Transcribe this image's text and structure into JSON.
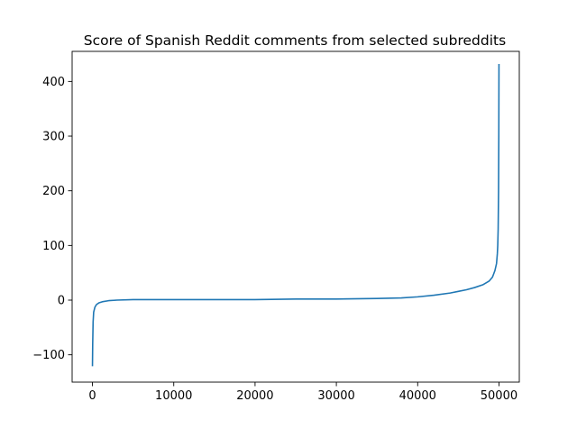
{
  "chart_data": {
    "type": "line",
    "title": "Score of Spanish Reddit comments from selected subreddits",
    "xlabel": "",
    "ylabel": "",
    "xlim": [
      -2500,
      52500
    ],
    "ylim": [
      -150,
      455
    ],
    "grid": false,
    "xticks": [
      0,
      10000,
      20000,
      30000,
      40000,
      50000
    ],
    "xtick_labels": [
      "0",
      "10000",
      "20000",
      "30000",
      "40000",
      "50000"
    ],
    "yticks": [
      -100,
      0,
      100,
      200,
      300,
      400
    ],
    "ytick_labels": [
      "−100",
      "0",
      "100",
      "200",
      "300",
      "400"
    ],
    "series": [
      {
        "color": "#1f77b4",
        "x": [
          0,
          30,
          80,
          150,
          300,
          500,
          800,
          1200,
          2000,
          3000,
          5000,
          10000,
          15000,
          20000,
          25000,
          30000,
          35000,
          38000,
          40000,
          42000,
          44000,
          45000,
          46000,
          47000,
          48000,
          48800,
          49200,
          49500,
          49700,
          49800,
          49850,
          49900,
          49950,
          49980,
          50000
        ],
        "y": [
          -121,
          -80,
          -40,
          -22,
          -13,
          -8,
          -5,
          -3,
          -1,
          0,
          1,
          1,
          1,
          1,
          2,
          2,
          3,
          4,
          6,
          9,
          13,
          16,
          19,
          23,
          28,
          35,
          42,
          54,
          67,
          85,
          100,
          130,
          200,
          300,
          432
        ]
      }
    ]
  }
}
